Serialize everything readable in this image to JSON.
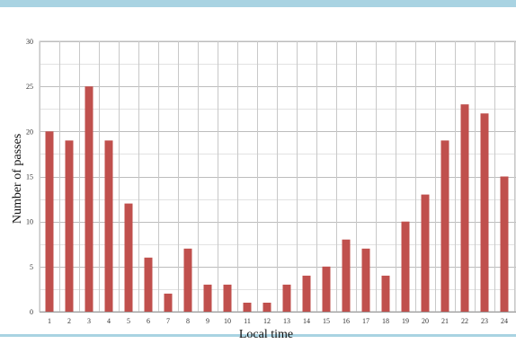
{
  "chart_data": {
    "type": "bar",
    "categories": [
      "1",
      "2",
      "3",
      "4",
      "5",
      "6",
      "7",
      "8",
      "9",
      "10",
      "11",
      "12",
      "13",
      "14",
      "15",
      "16",
      "17",
      "18",
      "19",
      "20",
      "21",
      "22",
      "23",
      "24"
    ],
    "values": [
      20,
      19,
      25,
      19,
      12,
      6,
      2,
      7,
      3,
      3,
      1,
      1,
      3,
      4,
      5,
      8,
      7,
      4,
      10,
      13,
      19,
      23,
      22,
      15
    ],
    "title": "",
    "xlabel": "Local time",
    "ylabel": "Number of passes",
    "ylim": [
      0,
      30
    ],
    "yticks": [
      0,
      5,
      10,
      15,
      20,
      25,
      30
    ],
    "grid": true,
    "legend": "none",
    "bar_color": "#c0504d",
    "grid_color": "#c8c8c8"
  }
}
